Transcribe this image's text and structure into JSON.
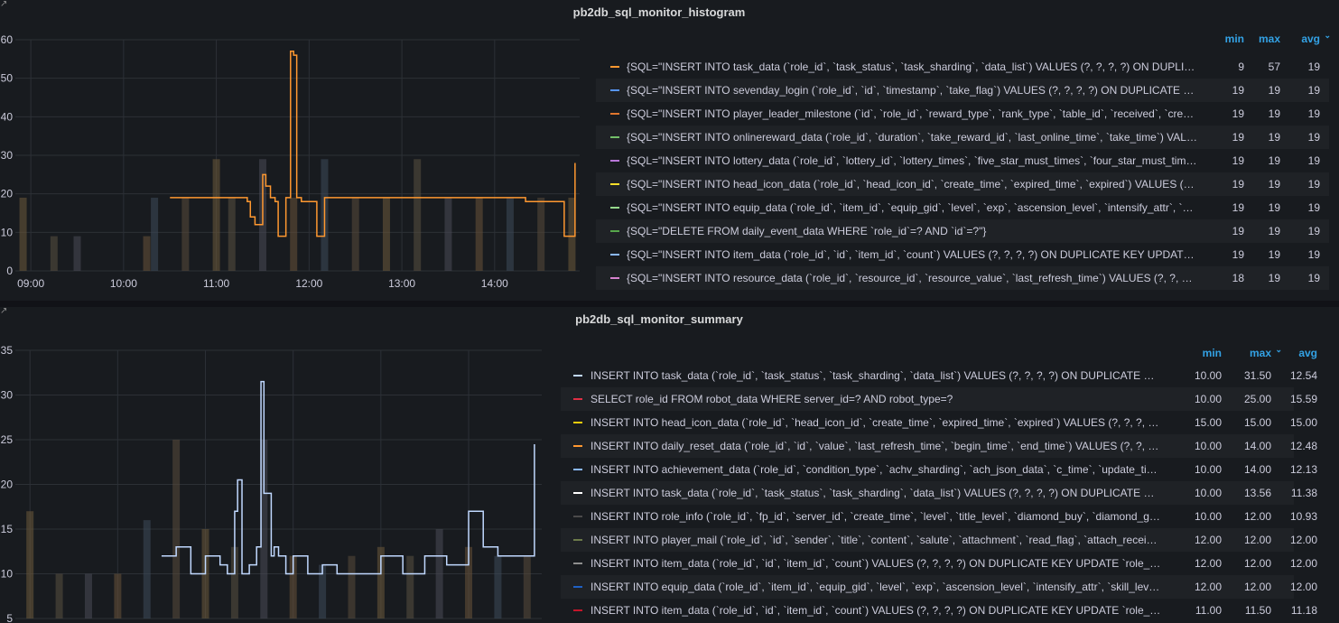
{
  "panels": [
    {
      "title": "pb2db_sql_monitor_histogram",
      "legend_headers": {
        "min": "min",
        "max": "max",
        "avg": "avg"
      },
      "legend": [
        {
          "color": "#ff9830",
          "name": "{SQL=\"INSERT INTO task_data (`role_id`, `task_status`, `task_sharding`, `data_list`) VALUES (?, ?, ?, ?) ON DUPLICATE KEY UPDATE",
          "min": "9",
          "max": "57",
          "avg": "19"
        },
        {
          "color": "#5794f2",
          "name": "{SQL=\"INSERT INTO sevenday_login (`role_id`, `id`, `timestamp`, `take_flag`) VALUES (?, ?, ?, ?) ON DUPLICATE KEY UPDATE",
          "min": "19",
          "max": "19",
          "avg": "19"
        },
        {
          "color": "#e0752d",
          "name": "{SQL=\"INSERT INTO player_leader_milestone (`id`, `role_id`, `reward_type`, `rank_type`, `table_id`, `received`, `create_time`",
          "min": "19",
          "max": "19",
          "avg": "19"
        },
        {
          "color": "#73bf69",
          "name": "{SQL=\"INSERT INTO onlinereward_data (`role_id`, `duration`, `take_reward_id`, `last_online_time`, `take_time`) VALUES (?, ?",
          "min": "19",
          "max": "19",
          "avg": "19"
        },
        {
          "color": "#b877d9",
          "name": "{SQL=\"INSERT INTO lottery_data (`role_id`, `lottery_id`, `lottery_times`, `five_star_must_times`, `four_star_must_times`, `",
          "min": "19",
          "max": "19",
          "avg": "19"
        },
        {
          "color": "#fade2a",
          "name": "{SQL=\"INSERT INTO head_icon_data (`role_id`, `head_icon_id`, `create_time`, `expired_time`, `expired`) VALUES (?, ?, ?, ?, ?)",
          "min": "19",
          "max": "19",
          "avg": "19"
        },
        {
          "color": "#96d98d",
          "name": "{SQL=\"INSERT INTO equip_data (`role_id`, `item_id`, `equip_gid`, `level`, `exp`, `ascension_level`, `intensify_attr`, `skill_level`",
          "min": "19",
          "max": "19",
          "avg": "19"
        },
        {
          "color": "#56a64b",
          "name": "{SQL=\"DELETE FROM daily_event_data WHERE `role_id`=? AND `id`=?\"}",
          "min": "19",
          "max": "19",
          "avg": "19"
        },
        {
          "color": "#8ab8ff",
          "name": "{SQL=\"INSERT INTO item_data (`role_id`, `id`, `item_id`, `count`) VALUES (?, ?, ?, ?) ON DUPLICATE KEY UPDATE `role_id`=?",
          "min": "19",
          "max": "19",
          "avg": "19"
        },
        {
          "color": "#d683ce",
          "name": "{SQL=\"INSERT INTO resource_data (`role_id`, `resource_id`, `resource_value`, `last_refresh_time`) VALUES (?, ?, ?, ?) ON DUPLICATE",
          "min": "18",
          "max": "19",
          "avg": "19"
        }
      ]
    },
    {
      "title": "pb2db_sql_monitor_summary",
      "legend_headers": {
        "min": "min",
        "max": "max",
        "avg": "avg"
      },
      "legend": [
        {
          "color": "#c0d8ff",
          "name": "INSERT INTO task_data (`role_id`, `task_status`, `task_sharding`, `data_list`) VALUES (?, ?, ?, ?) ON DUPLICATE KEY UPDATE",
          "min": "10.00",
          "max": "31.50",
          "avg": "12.54"
        },
        {
          "color": "#e02f44",
          "name": "SELECT role_id FROM robot_data WHERE server_id=? AND robot_type=?",
          "min": "10.00",
          "max": "25.00",
          "avg": "15.59"
        },
        {
          "color": "#f2cc0c",
          "name": "INSERT INTO head_icon_data (`role_id`, `head_icon_id`, `create_time`, `expired_time`, `expired`) VALUES (?, ?, ?, ?, ?) ON",
          "min": "15.00",
          "max": "15.00",
          "avg": "15.00"
        },
        {
          "color": "#ff9830",
          "name": "INSERT INTO daily_reset_data (`role_id`, `id`, `value`, `last_refresh_time`, `begin_time`, `end_time`) VALUES (?, ?, ?, ?, ?, ?)",
          "min": "10.00",
          "max": "14.00",
          "avg": "12.48"
        },
        {
          "color": "#8ab8ff",
          "name": "INSERT INTO achievement_data (`role_id`, `condition_type`, `achv_sharding`, `ach_json_data`, `c_time`, `update_time`) VALUES",
          "min": "10.00",
          "max": "14.00",
          "avg": "12.13"
        },
        {
          "color": "#ffffff",
          "name": "INSERT INTO task_data (`role_id`, `task_status`, `task_sharding`, `data_list`) VALUES (?, ?, ?, ?) ON DUPLICATE KEY UPDATE",
          "min": "10.00",
          "max": "13.56",
          "avg": "11.38"
        },
        {
          "color": "#4a4a4a",
          "name": "INSERT INTO role_info (`role_id`, `fp_id`, `server_id`, `create_time`, `level`, `title_level`, `diamond_buy`, `diamond_gift`, `diamond",
          "min": "10.00",
          "max": "12.00",
          "avg": "10.93"
        },
        {
          "color": "#6b7a4a",
          "name": "INSERT INTO player_mail (`role_id`, `id`, `sender`, `title`, `content`, `salute`, `attachment`, `read_flag`, `attach_received`, `",
          "min": "12.00",
          "max": "12.00",
          "avg": "12.00"
        },
        {
          "color": "#8e8e8e",
          "name": "INSERT INTO item_data (`role_id`, `id`, `item_id`, `count`) VALUES (?, ?, ?, ?) ON DUPLICATE KEY UPDATE `role_id`=?, `id`",
          "min": "12.00",
          "max": "12.00",
          "avg": "12.00"
        },
        {
          "color": "#1f60c4",
          "name": "INSERT INTO equip_data (`role_id`, `item_id`, `equip_gid`, `level`, `exp`, `ascension_level`, `intensify_attr`, `skill_level`, `h",
          "min": "12.00",
          "max": "12.00",
          "avg": "12.00"
        },
        {
          "color": "#c4162a",
          "name": "INSERT INTO item_data (`role_id`, `id`, `item_id`, `count`) VALUES (?, ?, ?, ?) ON DUPLICATE KEY UPDATE `role_id`=?, `id`",
          "min": "11.00",
          "max": "11.50",
          "avg": "11.18"
        }
      ]
    }
  ],
  "chart_data": [
    {
      "type": "line",
      "x_ticks": [
        "09:00",
        "10:00",
        "11:00",
        "12:00",
        "13:00",
        "14:00"
      ],
      "y_ticks": [
        0,
        10,
        20,
        30,
        40,
        50,
        60
      ],
      "ylim": [
        0,
        60
      ],
      "xlim": [
        "08:50",
        "14:55"
      ],
      "series": [
        {
          "color": "#ff9830",
          "x": [
            "10:30",
            "10:45",
            "10:50",
            "11:05",
            "11:10",
            "11:15",
            "11:20",
            "11:22",
            "11:25",
            "11:30",
            "11:32",
            "11:35",
            "11:38",
            "11:40",
            "11:42",
            "11:45",
            "11:48",
            "11:50",
            "11:52",
            "11:55",
            "11:58",
            "12:00",
            "12:05",
            "12:10",
            "12:12",
            "12:15",
            "12:17",
            "12:25",
            "12:30",
            "12:45",
            "13:00",
            "13:15",
            "13:30",
            "13:45",
            "14:00",
            "14:20",
            "14:30",
            "14:45",
            "14:50",
            "14:52"
          ],
          "y": [
            19,
            19,
            19,
            19,
            19,
            19,
            18,
            14,
            12,
            25,
            22,
            19,
            18,
            9,
            9,
            19,
            57,
            56,
            19,
            18,
            18,
            18,
            9,
            19,
            19,
            19,
            19,
            19,
            19,
            19,
            19,
            19,
            19,
            19,
            19,
            18,
            18,
            9,
            9,
            28
          ]
        }
      ],
      "bars": {
        "x": [
          "08:55",
          "09:15",
          "09:30",
          "10:15",
          "10:20",
          "10:40",
          "11:00",
          "11:10",
          "11:30",
          "11:50",
          "12:10",
          "12:30",
          "12:50",
          "13:10",
          "13:30",
          "13:50",
          "14:10",
          "14:30",
          "14:50"
        ],
        "y": [
          19,
          9,
          9,
          9,
          19,
          19,
          29,
          19,
          29,
          19,
          29,
          19,
          19,
          29,
          19,
          19,
          19,
          19,
          19
        ]
      }
    },
    {
      "type": "line",
      "x_ticks": [
        "09:00",
        "10:00",
        "11:00",
        "12:00",
        "13:00",
        "14:00"
      ],
      "y_ticks": [
        5,
        10,
        15,
        20,
        25,
        30,
        35
      ],
      "ylim": [
        5,
        35
      ],
      "xlim": [
        "08:50",
        "14:50"
      ],
      "series": [
        {
          "color": "#c0d8ff",
          "x": [
            "10:30",
            "10:40",
            "10:50",
            "11:00",
            "11:10",
            "11:15",
            "11:20",
            "11:22",
            "11:25",
            "11:30",
            "11:35",
            "11:38",
            "11:40",
            "11:45",
            "11:47",
            "11:50",
            "11:55",
            "12:00",
            "12:10",
            "12:20",
            "12:30",
            "13:00",
            "13:15",
            "13:30",
            "13:45",
            "14:00",
            "14:10",
            "14:20",
            "14:30",
            "14:45"
          ],
          "y": [
            12,
            13,
            10,
            12,
            11,
            10,
            17,
            20.5,
            10,
            11,
            13,
            31.5,
            19,
            12,
            13,
            12,
            10,
            12,
            10,
            11,
            10,
            12,
            10,
            12,
            11,
            17,
            13,
            12,
            12,
            24.5
          ]
        }
      ],
      "bars": {
        "x": [
          "09:00",
          "09:20",
          "09:40",
          "10:00",
          "10:20",
          "10:40",
          "11:00",
          "11:20",
          "11:40",
          "12:00",
          "12:20",
          "12:40",
          "13:00",
          "13:20",
          "13:40",
          "14:00",
          "14:20",
          "14:40"
        ],
        "y": [
          17,
          10,
          10,
          10,
          16,
          25,
          15,
          13,
          25,
          12,
          11,
          12,
          13,
          12,
          15,
          13,
          12,
          12
        ]
      }
    }
  ]
}
